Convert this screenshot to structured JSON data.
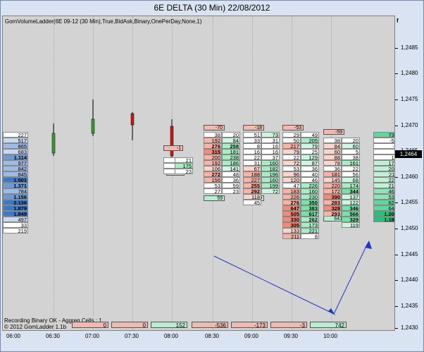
{
  "window": {
    "title": "6E DELTA (30 Min)  22/08/2012"
  },
  "indicator": {
    "label": "GomVolumeLadder(6E 09-12 (30 Min),True,BidAsk,Binary,OnePerDay,None,1)"
  },
  "status": {
    "line1": "Recording Binary OK - Aggreg Cells : 1",
    "line2": "© 2012 GomLadder 1.1b"
  },
  "price_axis": {
    "labels": [
      "1,2475",
      "1,2470",
      "1,2465",
      "1,2460",
      "1,2455",
      "1,2450",
      "1,2445",
      "1,2440",
      "1,2435",
      "1,2430"
    ],
    "top_labels": [
      "1,2485",
      "1,2480"
    ],
    "current_price": "1,2464",
    "corner_icon": "f-icon"
  },
  "time_axis": {
    "labels": [
      "06:00",
      "06:30",
      "07:00",
      "07:30",
      "08:00",
      "08:30",
      "09:00",
      "09:30",
      "10:00"
    ]
  },
  "deltas": [
    "0",
    "0",
    "152",
    "-536",
    "-173",
    "-3",
    "742"
  ],
  "ladders": {
    "left_volume": [
      "227",
      "517",
      "865",
      "683",
      "1,114",
      "977",
      "842",
      "845",
      "1,501",
      "1,371",
      "784",
      "1,156",
      "2,136",
      "1,879",
      "1,849",
      "497",
      "33",
      "219"
    ],
    "right_volume": [
      "738",
      "-59",
      "-1",
      "0",
      "14",
      "170",
      "208",
      "211",
      "222",
      "213",
      "468",
      "535",
      "620",
      "641",
      "1,209",
      "1,183"
    ],
    "bar1_delta_top": "-1",
    "bar1_delta_bottom": "23",
    "bar2_delta_top": "-70",
    "bar2_delta_bottom": "59",
    "bar3_delta_top": "-18",
    "bar3_delta_bottom": "100",
    "bar4_delta_top": "-53",
    "bar4_delta_bottom": "467",
    "bar5_delta_top": "-59",
    "bar5_delta_bottom": "641",
    "bar0": {
      "bid": [
        "18",
        "28",
        "5"
      ],
      "ask": [
        "21",
        "175",
        "23"
      ]
    },
    "bar1": {
      "bid": [
        "38",
        "192",
        "276",
        "315",
        "200",
        "192",
        "106",
        "272",
        "156",
        "53",
        "27"
      ],
      "ask": [
        "20",
        "84",
        "258",
        "181",
        "238",
        "186",
        "141",
        "48",
        "36",
        "59",
        "23"
      ]
    },
    "bar2": {
      "bid": [
        "51",
        "33",
        "8",
        "16",
        "22",
        "31",
        "67",
        "188",
        "227",
        "255",
        "292",
        "118",
        "45"
      ],
      "ask": [
        "73",
        "31",
        "16",
        "16",
        "37",
        "160",
        "182",
        "196",
        "160",
        "199",
        "72"
      ]
    },
    "bar3": {
      "bid": [
        "29",
        "50",
        "217",
        "79",
        "22",
        "72",
        "53",
        "96",
        "120",
        "47",
        "183",
        "226",
        "276",
        "647",
        "505",
        "330",
        "305",
        "133",
        "211"
      ],
      "ask": [
        "49",
        "205",
        "79",
        "25",
        "129",
        "87",
        "36",
        "40",
        "46",
        "226",
        "160",
        "230",
        "350",
        "383",
        "617",
        "262",
        "173",
        "221",
        "8"
      ]
    },
    "bar4": {
      "bid": [
        "38",
        "84",
        "60",
        "88",
        "78",
        "36",
        "181",
        "145",
        "220",
        "172",
        "390",
        "283",
        "328",
        "293"
      ],
      "ask": [
        "20",
        "60",
        "5",
        "38",
        "161",
        "22",
        "56",
        "68",
        "174",
        "344",
        "137",
        "122",
        "346",
        "566",
        "329",
        "119"
      ]
    }
  }
}
